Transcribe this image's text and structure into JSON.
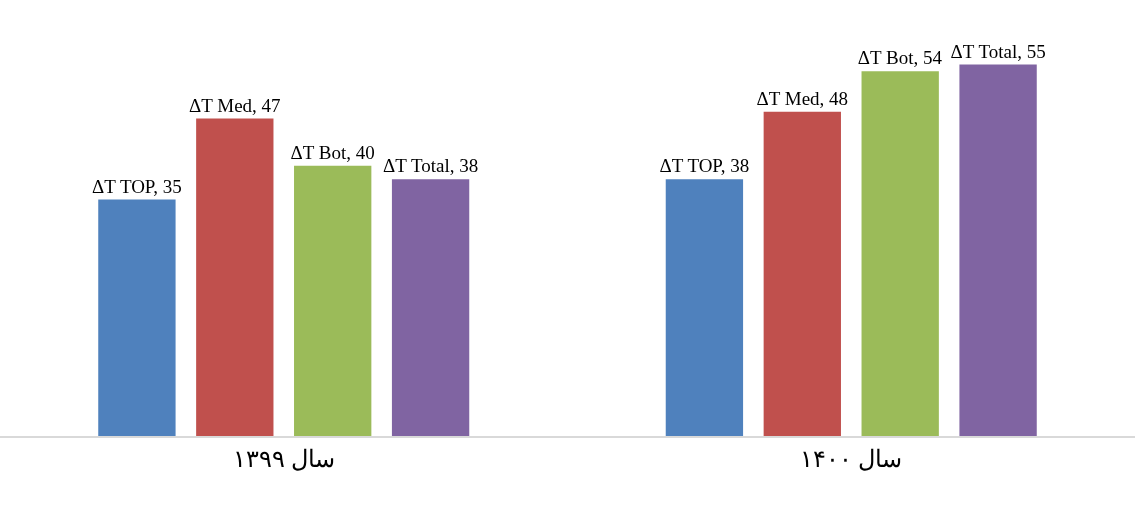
{
  "chart_data": {
    "type": "bar",
    "categories": [
      "سال ۱۳۹۹",
      "سال ۱۴۰۰"
    ],
    "series": [
      {
        "color": "#4f81bd",
        "values": [
          35,
          38
        ],
        "value_labels": [
          "ΔT TOP, 35",
          "ΔT TOP, 38"
        ]
      },
      {
        "color": "#c0504d",
        "values": [
          47,
          48
        ],
        "value_labels": [
          "ΔT Med, 47",
          "ΔT Med, 48"
        ]
      },
      {
        "color": "#9bbb59",
        "values": [
          40,
          54
        ],
        "value_labels": [
          "ΔT Bot, 40",
          "ΔT Bot, 54"
        ]
      },
      {
        "color": "#8064a2",
        "values": [
          38,
          55
        ],
        "value_labels": [
          "ΔT Total, 38",
          "ΔT Total, 55"
        ]
      }
    ],
    "legend": false
  }
}
